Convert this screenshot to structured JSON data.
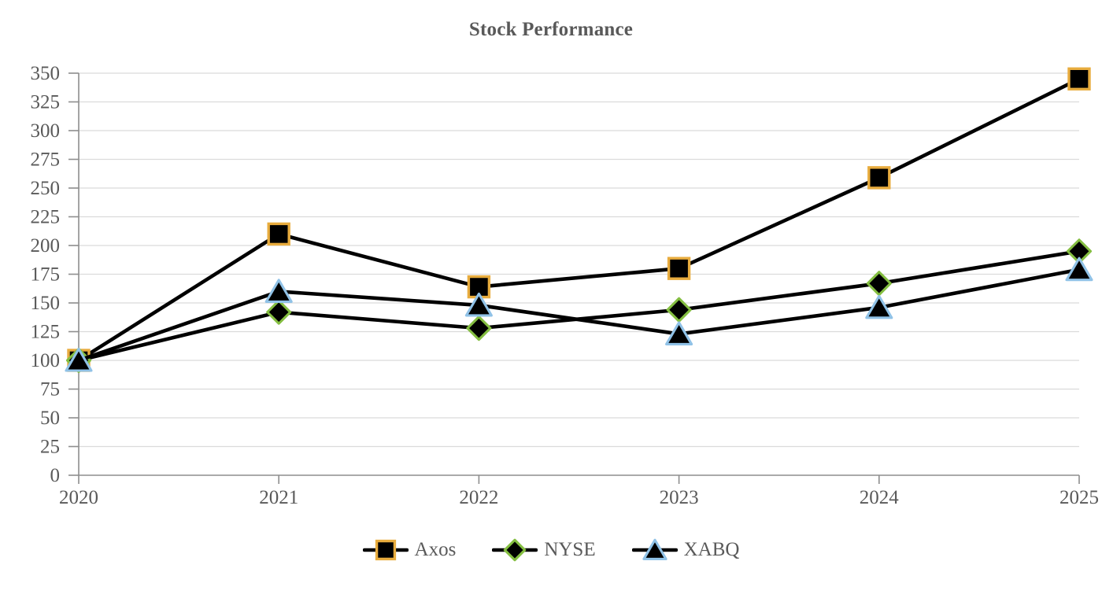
{
  "chart_data": {
    "type": "line",
    "title": "Stock Performance",
    "categories": [
      "2020",
      "2021",
      "2022",
      "2023",
      "2024",
      "2025"
    ],
    "series": [
      {
        "name": "Axos",
        "marker": "square",
        "marker_border_color": "#E8AC3E",
        "marker_fill": "#000000",
        "line_color": "#000000",
        "values": [
          100,
          210,
          164,
          180,
          259,
          345
        ]
      },
      {
        "name": "NYSE",
        "marker": "diamond",
        "marker_border_color": "#84BE41",
        "marker_fill": "#000000",
        "line_color": "#000000",
        "values": [
          100,
          142,
          128,
          144,
          167,
          195
        ]
      },
      {
        "name": "XABQ",
        "marker": "triangle",
        "marker_border_color": "#90C2E7",
        "marker_fill": "#000000",
        "line_color": "#000000",
        "values": [
          100,
          160,
          148,
          123,
          146,
          179
        ]
      }
    ],
    "xlabel": "",
    "ylabel": "",
    "ylim": [
      0,
      350
    ],
    "y_ticks": [
      0,
      25,
      50,
      75,
      100,
      125,
      150,
      175,
      200,
      225,
      250,
      275,
      300,
      325,
      350
    ],
    "grid": "horizontal",
    "legend_position": "bottom",
    "colors": {
      "label_text": "#595959",
      "axis_line": "#8E8E8E",
      "gridline": "#DBDBDB",
      "background": "#FFFFFF"
    }
  }
}
